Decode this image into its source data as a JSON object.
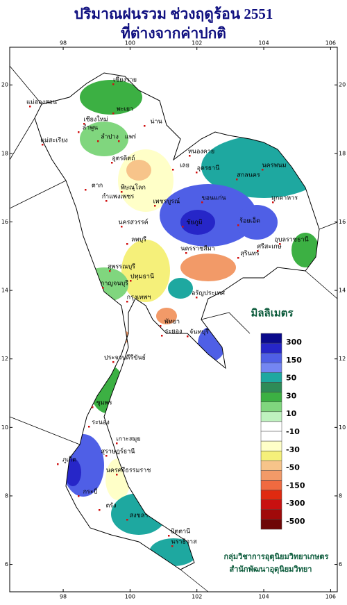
{
  "title": [
    "ปริมาณฝนรวม ช่วงฤดูร้อน 2551",
    "ที่ต่างจากค่าปกติ"
  ],
  "map": {
    "lonlim": [
      96.4,
      106.2
    ],
    "latlim": [
      5.2,
      21.1
    ],
    "xticks": [
      98,
      100,
      102,
      104,
      106
    ],
    "yticks": [
      6,
      8,
      10,
      12,
      14,
      16,
      18,
      20
    ]
  },
  "legend": {
    "title": "มิลลิเมตร",
    "colors": [
      "#0a0a8c",
      "#2626c8",
      "#4f5fe6",
      "#7486f2",
      "#1ea8a0",
      "#2e8b57",
      "#3cb043",
      "#80d67e",
      "#bff2bf",
      "#ffffff",
      "#ffffff",
      "#ffffc8",
      "#f5f07a",
      "#f7c48a",
      "#f29a68",
      "#f06a40",
      "#e02a10",
      "#c81010",
      "#a00a0a",
      "#6e0606"
    ],
    "labels": [
      "300",
      "150",
      "50",
      "30",
      "10",
      "-10",
      "-30",
      "-50",
      "-150",
      "-300",
      "-500"
    ]
  },
  "places": [
    "เชียงราย",
    "แม่ฮ่องสอน",
    "พะเยา",
    "เชียงใหม่",
    "ลำพูน",
    "ลำปาง",
    "แพร่",
    "น่าน",
    "แม่สะเรียง",
    "อุตรดิตถ์",
    "ตาก",
    "พิษณุโลก",
    "กำแพงเพชร",
    "เพชรบูรณ์",
    "นครสวรรค์",
    "เลย",
    "หนองคาย",
    "อุดรธานี",
    "สกลนคร",
    "นครพนม",
    "ขอนแก่น",
    "มุกดาหาร",
    "ชัยภูมิ",
    "ร้อยเอ็ด",
    "อุบลราชธานี",
    "นครราชสีมา",
    "สุรินทร์",
    "ศรีสะเกษ",
    "ลพบุรี",
    "สุพรรณบุรี",
    "กาญจนบุรี",
    "ปทุมธานี",
    "กรุงเทพฯ",
    "อรัญประเทศ",
    "พัทยา",
    "ระยอง",
    "จันทบุรี",
    "ประจวบคีรีขันธ์",
    "ชุมพร",
    "ระนอง",
    "เกาะสมุย",
    "สุราษฎร์ธานี",
    "นครศรีธรรมราช",
    "ภูเก็ต",
    "กระบี่",
    "ตรัง",
    "สงขลา",
    "ปัตตานี",
    "นราธิวาส"
  ],
  "credits": [
    "กลุ่มวิชาการอุตุนิยมวิทยาเกษตร",
    "สำนักพัฒนาอุตุนิยมวิทยา"
  ]
}
